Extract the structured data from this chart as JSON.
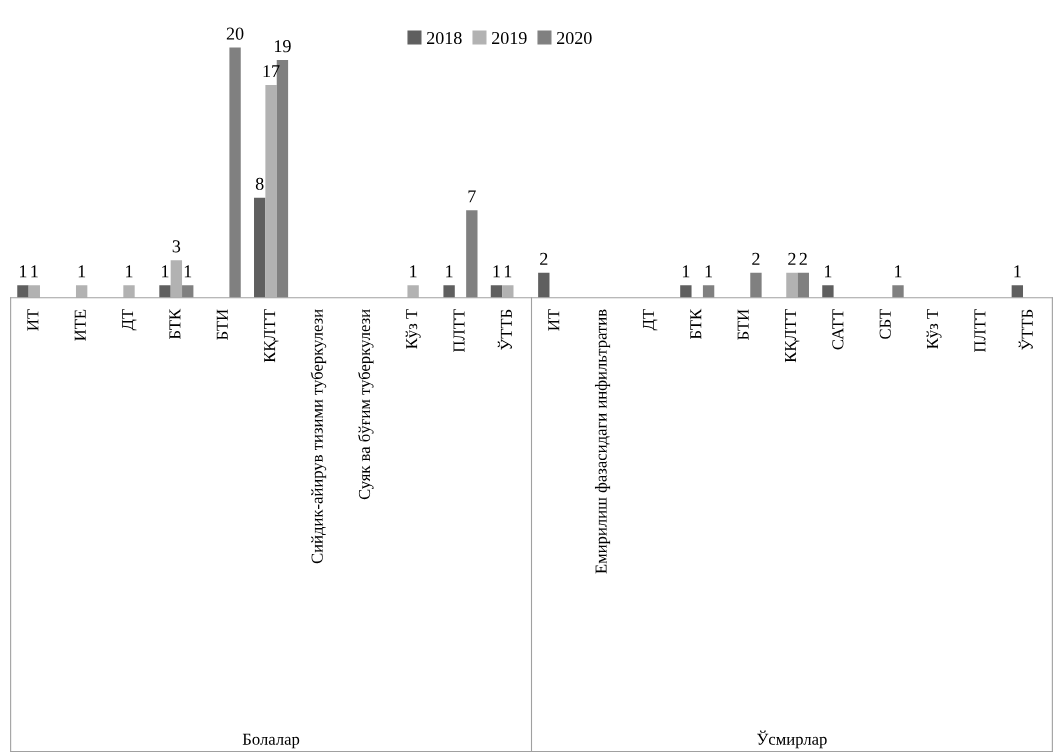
{
  "chart_data": {
    "type": "bar",
    "categories": [
      "ИТ",
      "ИТЕ",
      "ДТ",
      "БТК",
      "БТИ",
      "КҚЛТТ",
      "Сийдик-айирув тизими туберкулези",
      "Суяк ва бўғим туберкулези",
      "Кўз Т",
      "ПЛТТ",
      "ЎТТБ",
      "ИТ",
      "Емирилиш фазасидаги инфильтратив",
      "ДТ",
      "БТК",
      "БТИ",
      "КҚЛТТ",
      "САТТ",
      "СБТ",
      "Кўз Т",
      "ПЛТТ",
      "ЎТТБ"
    ],
    "series": [
      {
        "name": "2018",
        "color": "#5f5f5f",
        "values": [
          1,
          null,
          null,
          1,
          null,
          8,
          null,
          null,
          null,
          1,
          1,
          2,
          null,
          null,
          1,
          null,
          null,
          1,
          null,
          null,
          null,
          1
        ]
      },
      {
        "name": "2019",
        "color": "#b2b2b2",
        "values": [
          1,
          1,
          1,
          3,
          null,
          17,
          null,
          null,
          1,
          null,
          1,
          null,
          null,
          null,
          null,
          null,
          2,
          null,
          null,
          null,
          null,
          null
        ]
      },
      {
        "name": "2020",
        "color": "#808080",
        "values": [
          null,
          null,
          null,
          1,
          20,
          19,
          null,
          null,
          null,
          7,
          null,
          null,
          null,
          null,
          1,
          2,
          2,
          null,
          1,
          null,
          null,
          null
        ]
      }
    ],
    "annotations": [
      "Болалар",
      "Ўсмирлар"
    ],
    "data_labels": true,
    "legend": "top",
    "grid": false
  }
}
